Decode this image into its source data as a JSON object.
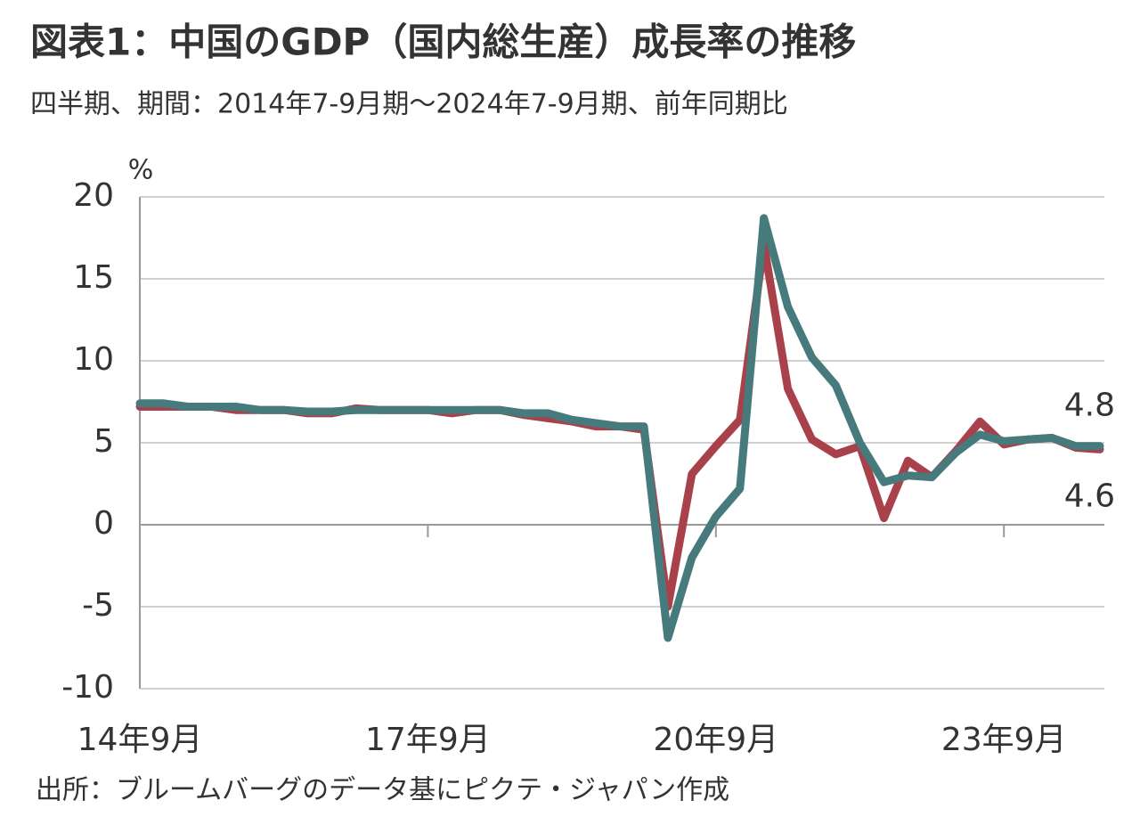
{
  "chart_data": {
    "type": "line",
    "title": "図表1：中国のGDP（国内総生産）成長率の推移",
    "subtitle": "四半期、期間：2014年7-9月期～2024年7-9月期、前年同期比",
    "y_unit": "%",
    "source": "出所：ブルームバーグのデータ基にピクテ・ジャパン作成",
    "categories": [
      "14年9月",
      null,
      null,
      null,
      null,
      null,
      null,
      null,
      null,
      null,
      null,
      null,
      "17年9月",
      null,
      null,
      null,
      null,
      null,
      null,
      null,
      null,
      null,
      null,
      null,
      "20年9月",
      null,
      null,
      null,
      null,
      null,
      null,
      null,
      null,
      null,
      null,
      null,
      "23年9月",
      null,
      null,
      null,
      null
    ],
    "series": [
      {
        "color": "#a8414a",
        "values": [
          7.2,
          7.2,
          7.2,
          7.2,
          7.0,
          7.0,
          7.0,
          6.8,
          6.8,
          7.1,
          7.0,
          7.0,
          7.0,
          6.8,
          7.0,
          7.0,
          6.7,
          6.5,
          6.3,
          6.0,
          6.0,
          5.8,
          -5.0,
          3.1,
          4.8,
          6.4,
          17.1,
          8.3,
          5.2,
          4.3,
          4.8,
          0.4,
          3.9,
          2.9,
          4.5,
          6.3,
          4.9,
          5.2,
          5.3,
          4.7,
          4.6
        ]
      },
      {
        "color": "#467a7c",
        "values": [
          7.4,
          7.4,
          7.2,
          7.2,
          7.2,
          7.0,
          7.0,
          6.9,
          6.9,
          7.0,
          7.0,
          7.0,
          7.0,
          7.0,
          7.0,
          7.0,
          6.8,
          6.8,
          6.4,
          6.2,
          6.0,
          6.0,
          -6.9,
          -2.0,
          0.5,
          2.2,
          18.7,
          13.3,
          10.2,
          8.5,
          5.0,
          2.6,
          3.0,
          2.9,
          4.4,
          5.5,
          5.1,
          5.2,
          5.3,
          4.8,
          4.8
        ]
      }
    ],
    "ylim": [
      -10,
      20
    ],
    "yticks": [
      -10,
      -5,
      0,
      5,
      10,
      15,
      20
    ],
    "grid": true
  }
}
